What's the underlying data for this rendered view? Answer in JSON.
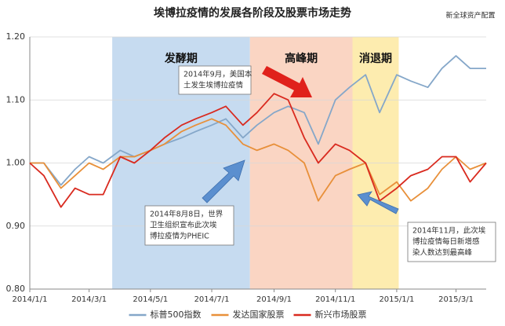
{
  "chart_data": {
    "type": "line",
    "title": "埃博拉疫情的发展各阶段及股票市场走势",
    "source": "新全球资产配置",
    "x": [
      "2014/1/1",
      "2014/1/15",
      "2014/2/1",
      "2014/2/15",
      "2014/3/1",
      "2014/3/15",
      "2014/4/1",
      "2014/4/15",
      "2014/5/1",
      "2014/5/15",
      "2014/6/1",
      "2014/6/15",
      "2014/7/1",
      "2014/7/15",
      "2014/8/1",
      "2014/8/15",
      "2014/9/1",
      "2014/9/15",
      "2014/10/1",
      "2014/10/15",
      "2014/11/1",
      "2014/11/15",
      "2014/12/1",
      "2014/12/15",
      "2015/1/1",
      "2015/1/15",
      "2015/2/1",
      "2015/2/15",
      "2015/3/1",
      "2015/3/15",
      "2015/3/31"
    ],
    "xlim": [
      "2014/1/1",
      "2015/3/31"
    ],
    "xticks": [
      "2014/1/1",
      "2014/3/1",
      "2014/5/1",
      "2014/7/1",
      "2014/9/1",
      "2014/11/1",
      "2015/1/1",
      "2015/3/1"
    ],
    "ylim": [
      0.8,
      1.2
    ],
    "yticks": [
      {
        "value": 0.8,
        "label": "0.80"
      },
      {
        "value": 0.9,
        "label": "0.90"
      },
      {
        "value": 1.0,
        "label": "1.00"
      },
      {
        "value": 1.1,
        "label": "1.10"
      },
      {
        "value": 1.2,
        "label": "1.20"
      }
    ],
    "grid": true,
    "legend": "bottom",
    "series": [
      {
        "name": "标普500指数",
        "color": "#85a7c9",
        "values": [
          1.0,
          1.0,
          0.965,
          0.99,
          1.01,
          1.0,
          1.02,
          1.01,
          1.02,
          1.03,
          1.04,
          1.05,
          1.06,
          1.07,
          1.04,
          1.06,
          1.08,
          1.09,
          1.08,
          1.03,
          1.1,
          1.12,
          1.14,
          1.08,
          1.14,
          1.13,
          1.12,
          1.15,
          1.17,
          1.15,
          1.15
        ]
      },
      {
        "name": "发达国家股票",
        "color": "#e8903a",
        "values": [
          1.0,
          1.0,
          0.96,
          0.98,
          1.0,
          0.99,
          1.01,
          1.01,
          1.02,
          1.03,
          1.05,
          1.06,
          1.07,
          1.06,
          1.03,
          1.02,
          1.03,
          1.02,
          1.0,
          0.94,
          0.98,
          0.99,
          1.0,
          0.95,
          0.97,
          0.94,
          0.96,
          0.99,
          1.01,
          0.99,
          1.0
        ]
      },
      {
        "name": "新兴市场股票",
        "color": "#d92a1f",
        "values": [
          1.0,
          0.98,
          0.93,
          0.96,
          0.95,
          0.95,
          1.01,
          1.0,
          1.02,
          1.04,
          1.06,
          1.07,
          1.08,
          1.09,
          1.06,
          1.08,
          1.11,
          1.1,
          1.04,
          1.0,
          1.03,
          1.02,
          1.0,
          0.94,
          0.96,
          0.98,
          0.99,
          1.01,
          1.01,
          0.97,
          1.0
        ]
      }
    ],
    "phases": [
      {
        "label": "发酵期",
        "start": "2014/3/24",
        "end": "2014/8/8",
        "color": "#c6dbf0"
      },
      {
        "label": "高峰期",
        "start": "2014/8/8",
        "end": "2014/11/18",
        "color": "#fad5c3"
      },
      {
        "label": "消退期",
        "start": "2014/11/18",
        "end": "2015/1/3",
        "color": "#fdecaf"
      }
    ],
    "annotations": [
      {
        "lines": [
          "2014年9月，美国本",
          "土发生埃博拉疫情"
        ]
      },
      {
        "lines": [
          "2014年8月8日，世界",
          "卫生组织宣布此次埃",
          "博拉疫情为PHEIC"
        ]
      },
      {
        "lines": [
          "2014年11月，此次埃",
          "博拉疫情每日新增感",
          "染人数达到最高峰"
        ]
      }
    ]
  }
}
